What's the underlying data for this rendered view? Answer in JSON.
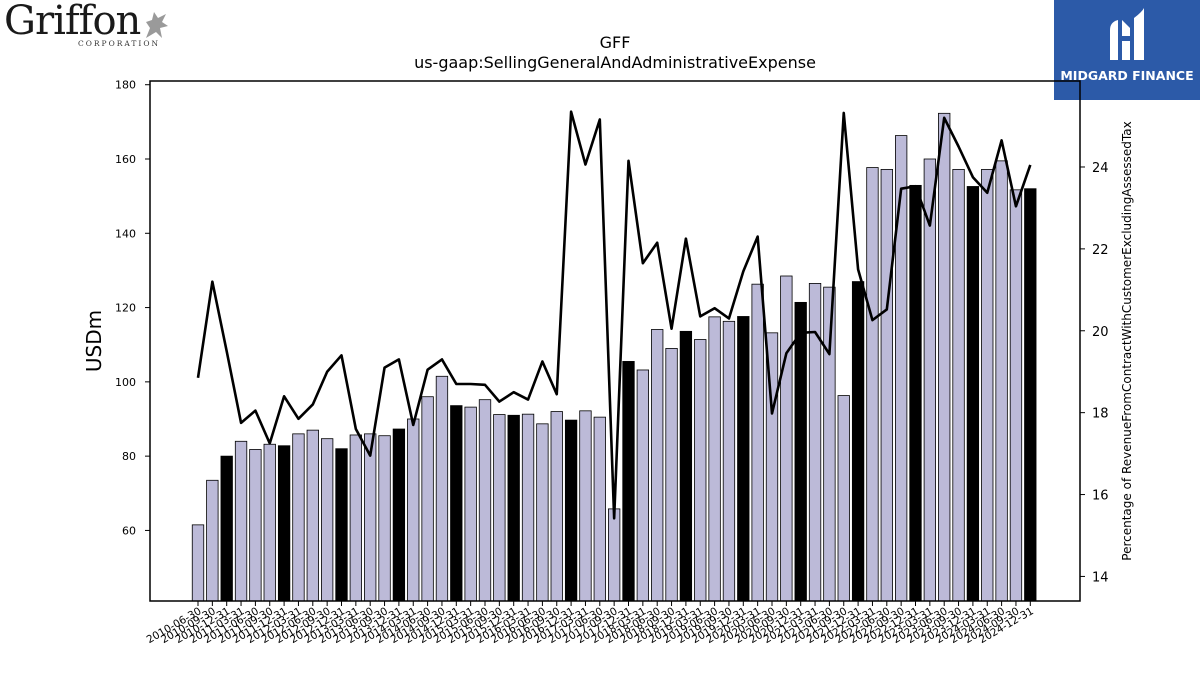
{
  "logos": {
    "left_text": "Griffon",
    "left_sub": "CORPORATION",
    "right_text": "MIDGARD FINANCE",
    "right_bg": "#2c5aa8"
  },
  "chart_data": {
    "type": "bar",
    "title": "GFF",
    "subtitle": "us-gaap:SellingGeneralAndAdministrativeExpense",
    "ylabel": "USDm",
    "y2label": "Percentage of RevenueFromContractWithCustomerExcludingAssessedTax",
    "ylim": [
      41,
      181
    ],
    "y2lim": [
      13.4,
      26.1
    ],
    "yticks": [
      60,
      80,
      100,
      120,
      140,
      160,
      180
    ],
    "y2ticks": [
      14,
      16,
      18,
      20,
      22,
      24
    ],
    "bar_color": "#bcbad8",
    "highlight_color": "#000000",
    "line_color": "#000000",
    "categories": [
      "2010-06-30",
      "2010-09-30",
      "2010-12-31",
      "2011-03-31",
      "2011-06-30",
      "2011-09-30",
      "2011-12-31",
      "2012-03-31",
      "2012-06-30",
      "2012-09-30",
      "2012-12-31",
      "2013-03-31",
      "2013-06-30",
      "2013-09-30",
      "2013-12-31",
      "2014-03-31",
      "2014-06-30",
      "2014-09-30",
      "2014-12-31",
      "2015-03-31",
      "2015-06-30",
      "2015-09-30",
      "2015-12-31",
      "2016-03-31",
      "2016-06-30",
      "2016-09-30",
      "2016-12-31",
      "2017-03-31",
      "2017-06-30",
      "2017-09-30",
      "2017-12-31",
      "2018-03-31",
      "2018-06-30",
      "2018-09-30",
      "2018-12-31",
      "2019-03-31",
      "2019-06-30",
      "2019-09-30",
      "2019-12-31",
      "2020-03-31",
      "2020-06-30",
      "2020-09-30",
      "2020-12-31",
      "2021-03-31",
      "2021-06-30",
      "2021-09-30",
      "2021-12-31",
      "2022-03-31",
      "2022-06-30",
      "2022-09-30",
      "2022-12-31",
      "2023-03-31",
      "2023-06-30",
      "2023-09-30",
      "2023-12-31",
      "2024-03-31",
      "2024-06-30",
      "2024-09-30",
      "2024-12-31"
    ],
    "xtick_labels": [
      "2010-06-30",
      "2010-09-30",
      "2010-12-31",
      "2011-03-31",
      "2011-06-30",
      "2011-09-30",
      "2011-12-31",
      "2012-03-31",
      "2012-06-30",
      "2012-09-30",
      "2012-12-31",
      "2013-03-31",
      "2013-06-30",
      "2013-09-30",
      "2013-12-31",
      "2014-03-31",
      "2014-06-30",
      "2014-09-30",
      "2014-12-31",
      "2015-03-31",
      "2015-06-30",
      "2015-09-30",
      "2015-12-31",
      "2016-03-31",
      "2016-06-30",
      "2016-09-30",
      "2016-12-31",
      "2017-03-31",
      "2017-06-30",
      "2017-09-30",
      "2017-12-31",
      "2018-03-31",
      "2018-06-30",
      "2018-09-30",
      "2018-12-31",
      "2019-03-31",
      "2019-06-30",
      "2019-09-30",
      "2019-12-31",
      "2020-03-31",
      "2020-06-30",
      "2020-09-30",
      "2020-12-31",
      "2021-03-31",
      "2021-06-30",
      "2021-09-30",
      "2021-12-31",
      "2022-03-31",
      "2022-06-30",
      "2022-09-30",
      "2022-12-31",
      "2023-03-31",
      "2023-06-30",
      "2023-09-30",
      "2023-12-31",
      "2024-03-31",
      "2024-06-30",
      "2024-09-30",
      "2024-12-31"
    ],
    "values": [
      61.5,
      73.5,
      80,
      84,
      81.8,
      83.2,
      82.8,
      86,
      87,
      84.7,
      82,
      85.7,
      86,
      85.5,
      87.3,
      90,
      96,
      101.5,
      93.6,
      93.2,
      95.2,
      91.2,
      91,
      91.3,
      88.7,
      92,
      89.7,
      92.2,
      90.5,
      65.8,
      105.5,
      103.2,
      114.1,
      109,
      113.6,
      111.4,
      117.5,
      116.3,
      117.6,
      126.3,
      113.2,
      128.5,
      121.4,
      126.5,
      125.5,
      96.3,
      127,
      157.7,
      157.2,
      166.3,
      152.9,
      160,
      172.3,
      157.2,
      152.6,
      157.2,
      159.5,
      151.7,
      152
    ],
    "highlight": [
      false,
      false,
      true,
      false,
      false,
      false,
      true,
      false,
      false,
      false,
      true,
      false,
      false,
      false,
      true,
      false,
      false,
      false,
      true,
      false,
      false,
      false,
      true,
      false,
      false,
      false,
      true,
      false,
      false,
      false,
      true,
      false,
      false,
      false,
      true,
      false,
      false,
      false,
      true,
      false,
      false,
      false,
      true,
      false,
      false,
      false,
      true,
      false,
      false,
      false,
      true,
      false,
      false,
      false,
      true,
      false,
      false,
      false,
      true
    ],
    "line_values": [
      18.85,
      21.2,
      19.5,
      17.75,
      18.05,
      17.25,
      18.4,
      17.85,
      18.2,
      19.0,
      19.4,
      17.6,
      16.95,
      19.1,
      19.3,
      17.7,
      19.05,
      19.3,
      18.7,
      18.7,
      18.68,
      18.27,
      18.5,
      18.32,
      19.25,
      18.45,
      25.35,
      24.06,
      25.16,
      15.42,
      24.15,
      21.65,
      22.15,
      20.05,
      22.25,
      20.35,
      20.55,
      20.3,
      21.45,
      22.3,
      17.98,
      19.45,
      19.95,
      19.97,
      19.43,
      25.32,
      21.5,
      20.26,
      20.52,
      23.47,
      23.53,
      22.57,
      25.2,
      24.5,
      23.75,
      23.37,
      24.65,
      23.04,
      24.05
    ]
  }
}
